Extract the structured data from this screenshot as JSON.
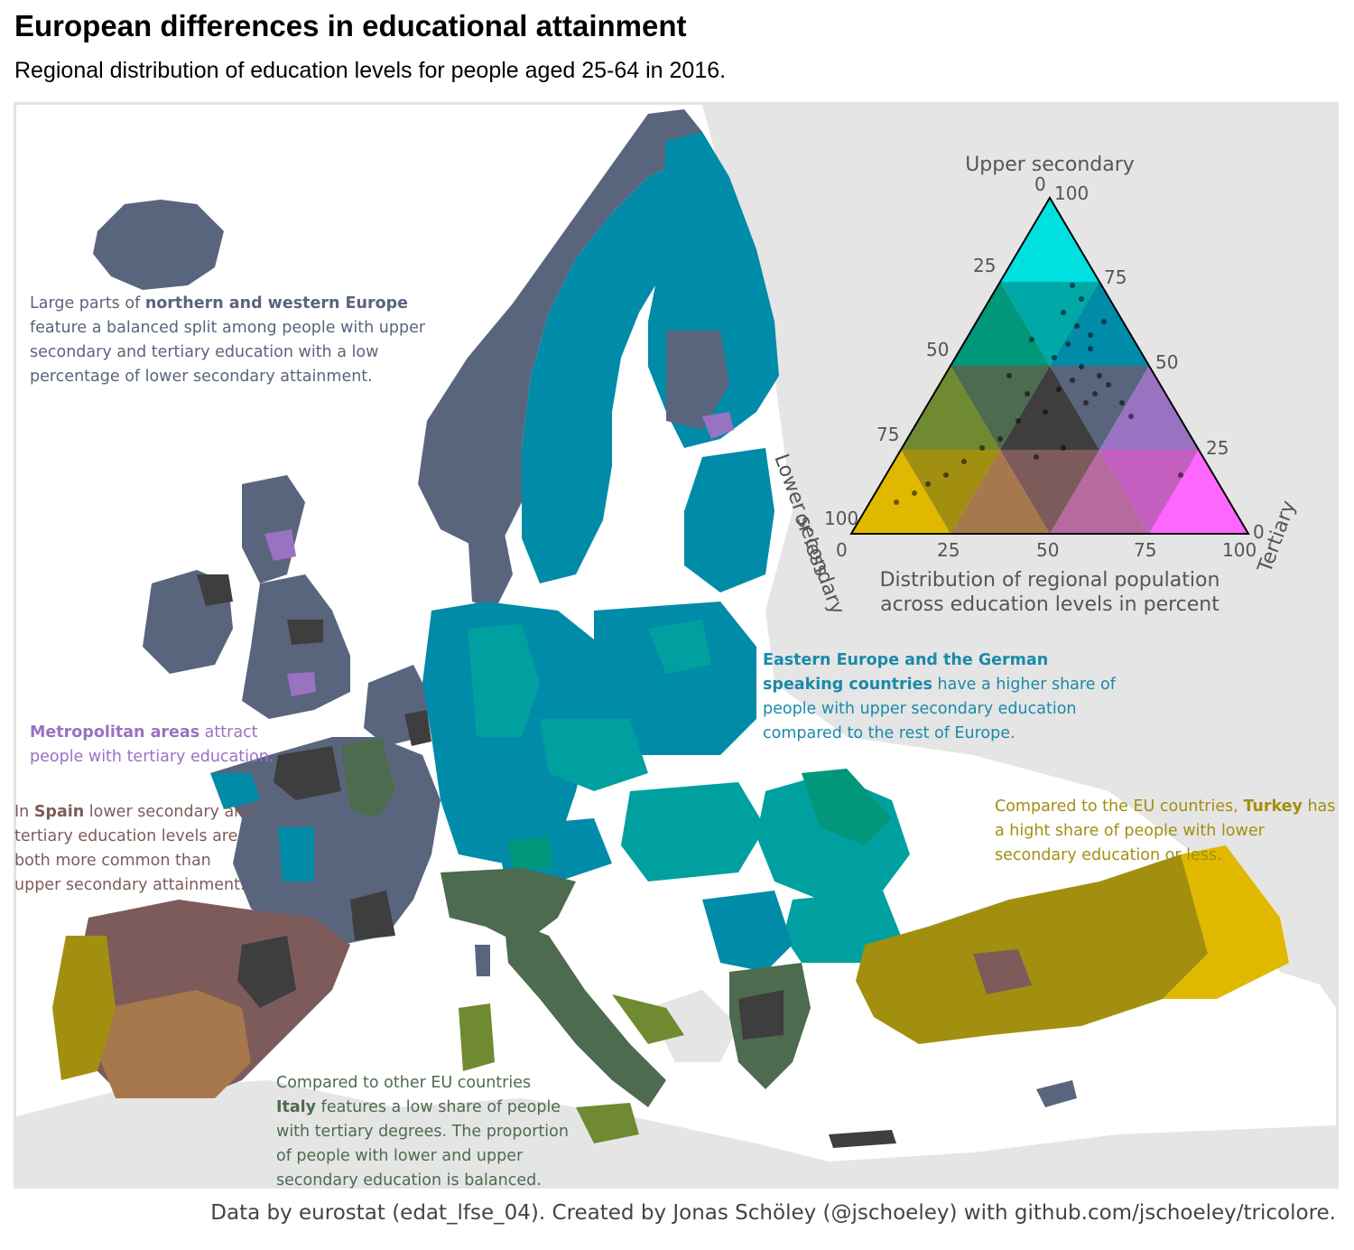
{
  "header": {
    "title": "European differences in educational attainment",
    "subtitle": "Regional distribution of education levels for people aged 25-64 in 2016."
  },
  "caption": "Data by eurostat (edat_lfse_04). Created by Jonas Schöley (@jschoeley) with github.com/jschoeley/tricolore.",
  "annotations": {
    "north": {
      "pre": "Large parts of ",
      "bold": "northern and western Europe",
      "post": " feature a balanced split among people with upper secondary and tertiary education with a low percentage of lower secondary attainment.",
      "color": "#59657d"
    },
    "metro": {
      "pre": "",
      "bold": "Metropolitan areas",
      "post": " attract people with tertiary education.",
      "color": "#9a72c2"
    },
    "spain": {
      "pre": "In ",
      "bold": "Spain",
      "post": " lower secondary and tertiary education levels are both more common than upper secondary attainment.",
      "color": "#7e5b5b"
    },
    "east": {
      "pre": "",
      "bold": "Eastern Europe and the German speaking countries",
      "post": " have a higher share of people with upper secondary education compared to the rest of Europe.",
      "color": "#1a8aa8"
    },
    "turkey": {
      "pre": "Compared to the EU countries, ",
      "bold": "Turkey",
      "post": " has a hight share of people with lower secondary education or less.",
      "color": "#a28f10"
    },
    "italy": {
      "pre": "Compared to other EU countries ",
      "bold": "Italy",
      "post": " features a low share of people with tertiary degrees. The proportion of people with lower and upper secondary education is balanced.",
      "color": "#4d6b4f"
    }
  },
  "legend": {
    "top_label": "Upper secondary",
    "left_label_line1": "Lower secondary",
    "left_label_line2": "or less",
    "right_label": "Tertiary",
    "bottom_label_line1": "Distribution of regional population",
    "bottom_label_line2": "across education levels in percent",
    "ticks": [
      "0",
      "25",
      "50",
      "75",
      "100"
    ]
  },
  "colors": {
    "north_west": "#59657d",
    "east": "#008ba8",
    "east_teal": "#00a0a0",
    "metro": "#9a72c2",
    "spain": "#7e5b5b",
    "spain_inner": "#a7784b",
    "turkey": "#a28f10",
    "turkey_east": "#e0b800",
    "italy": "#4d6b4f",
    "italy_south": "#6f8a30",
    "dark": "#3e3e3e",
    "romania": "#00977a",
    "land_gray": "#e5e5e5"
  },
  "icons": {
    "map": "europe-map",
    "legend": "ternary-triangle-legend"
  }
}
